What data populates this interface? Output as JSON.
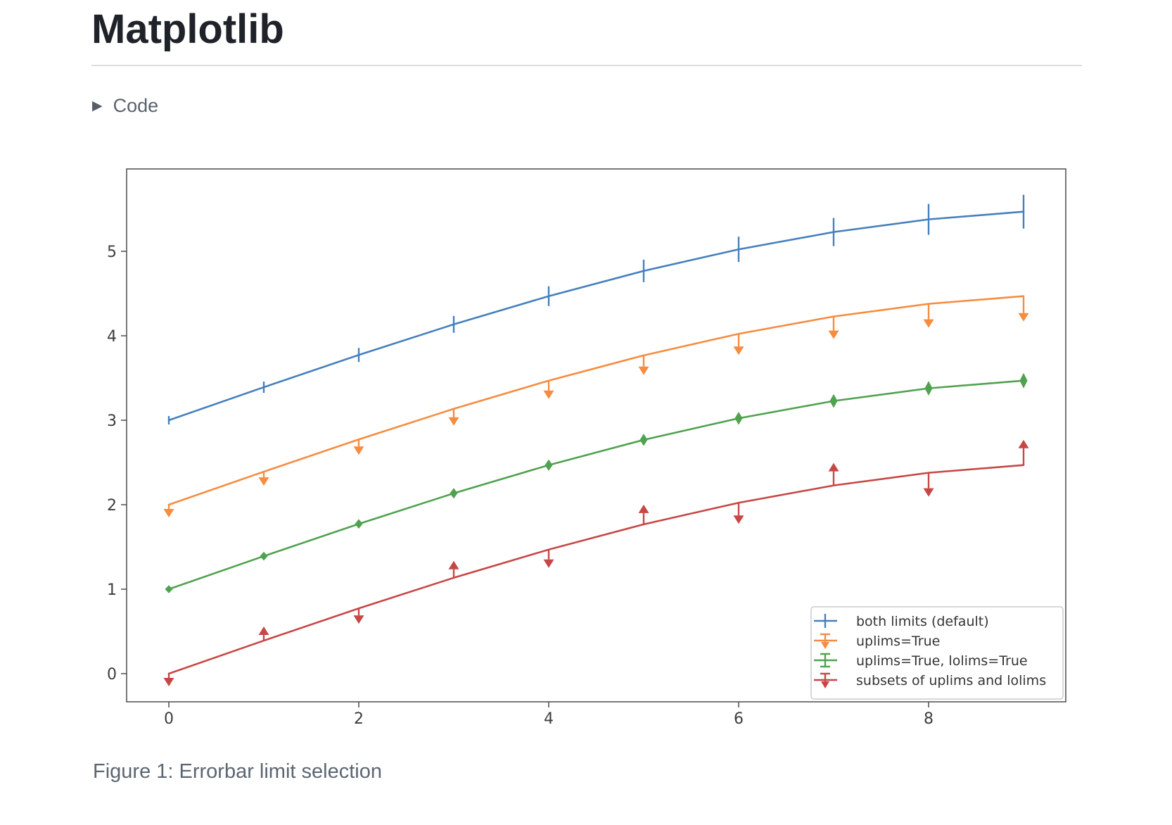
{
  "page": {
    "title": "Matplotlib",
    "code_toggle": {
      "label": "Code",
      "icon": "triangle-right-icon",
      "collapsed": true
    },
    "figure_caption": "Figure 1: Errorbar limit selection"
  },
  "colors": {
    "page_text": "#1f2329",
    "muted_text": "#59636e",
    "divider": "#d9dee3",
    "axis": "#4c4c4c",
    "tick_label": "#3d3d3d",
    "legend_border": "#cccccc",
    "legend_text": "#343434"
  },
  "chart_data": {
    "type": "line",
    "title": "",
    "xlabel": "",
    "ylabel": "",
    "x": [
      0,
      1,
      2,
      3,
      4,
      5,
      6,
      7,
      8,
      9
    ],
    "yerr": [
      0.05,
      0.067,
      0.083,
      0.1,
      0.117,
      0.133,
      0.15,
      0.167,
      0.183,
      0.2
    ],
    "series": [
      {
        "name": "both limits (default)",
        "color": "#4580bd",
        "uplims": false,
        "lolims": false,
        "values": [
          3.0,
          3.391,
          3.773,
          4.135,
          4.469,
          4.768,
          5.023,
          5.228,
          5.378,
          5.469
        ]
      },
      {
        "name": "uplims=True",
        "color": "#f68c3f",
        "uplims": true,
        "lolims": false,
        "values": [
          2.0,
          2.391,
          2.773,
          3.135,
          3.469,
          3.768,
          4.023,
          4.228,
          4.378,
          4.469
        ]
      },
      {
        "name": "uplims=True, lolims=True",
        "color": "#4fa24f",
        "uplims": true,
        "lolims": true,
        "values": [
          1.0,
          1.391,
          1.773,
          2.135,
          2.469,
          2.768,
          3.023,
          3.228,
          3.378,
          3.469
        ]
      },
      {
        "name": "subsets of uplims and lolims",
        "color": "#c74746",
        "uplims": [
          true,
          false,
          true,
          false,
          true,
          false,
          true,
          false,
          true,
          false
        ],
        "lolims": [
          false,
          true,
          false,
          true,
          false,
          true,
          false,
          true,
          false,
          true
        ],
        "values": [
          0.0,
          0.391,
          0.773,
          1.135,
          1.469,
          1.768,
          2.023,
          2.228,
          2.378,
          2.469
        ]
      }
    ],
    "xticks": [
      0,
      2,
      4,
      6,
      8
    ],
    "yticks": [
      0,
      1,
      2,
      3,
      4,
      5
    ],
    "xlim": [
      -0.45,
      9.45
    ],
    "ylim": [
      -0.33,
      5.99
    ],
    "grid": false,
    "legend": {
      "position": "lower right",
      "labels": [
        "both limits (default)",
        "uplims=True",
        "uplims=True, lolims=True",
        "subsets of uplims and lolims"
      ]
    }
  }
}
